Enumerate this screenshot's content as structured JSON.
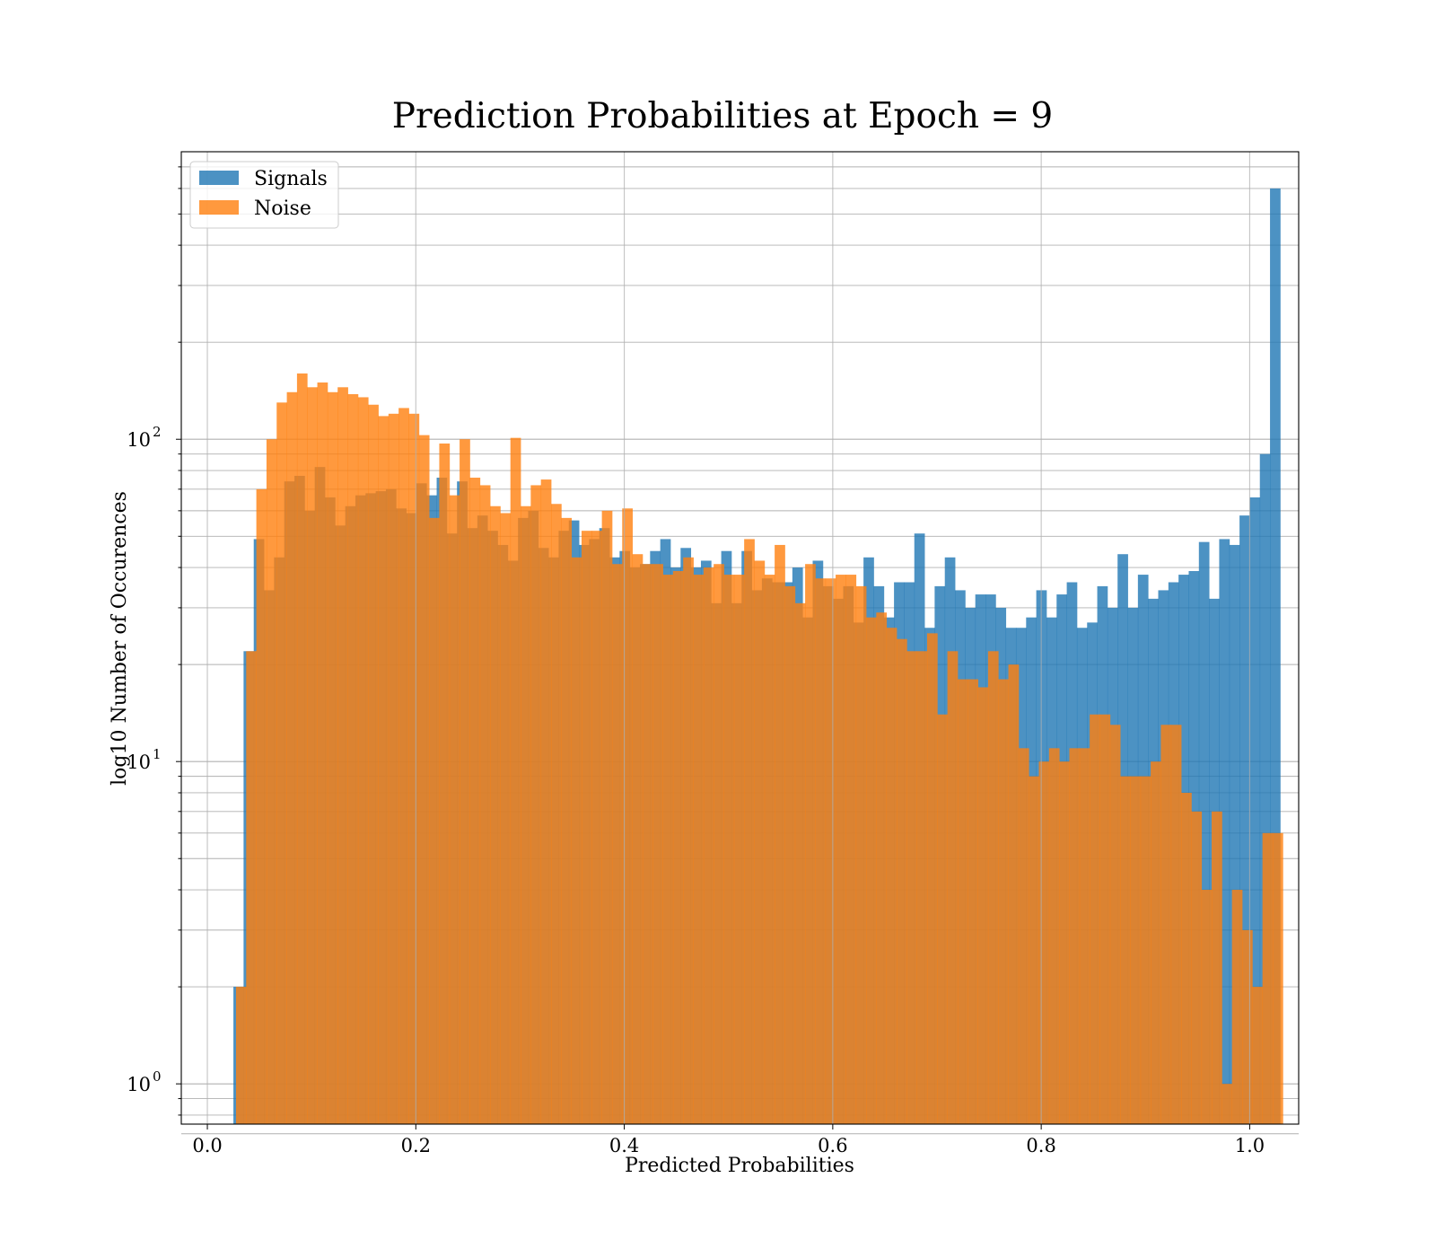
{
  "chart_data": {
    "type": "histogram",
    "title": "Prediction Probabilities at Epoch = 9",
    "xlabel": "Predicted Probabilities",
    "ylabel": "log10 Number of Occurences",
    "xlim": [
      -0.025,
      1.047
    ],
    "ylim": [
      0.75,
      780
    ],
    "yscale": "log",
    "grid": true,
    "x_ticks": [
      {
        "value": 0.0,
        "label": "0.0"
      },
      {
        "value": 0.2,
        "label": "0.2"
      },
      {
        "value": 0.4,
        "label": "0.4"
      },
      {
        "value": 0.6,
        "label": "0.6"
      },
      {
        "value": 0.8,
        "label": "0.8"
      },
      {
        "value": 1.0,
        "label": "1.0"
      }
    ],
    "y_ticks": [
      {
        "value": 1,
        "base": "10",
        "exp": "0"
      },
      {
        "value": 10,
        "base": "10",
        "exp": "1"
      },
      {
        "value": 100,
        "base": "10",
        "exp": "2"
      }
    ],
    "legend": {
      "position": "upper-left"
    },
    "series": [
      {
        "name": "Signals",
        "color": "#1f77b4",
        "bins": {
          "start": 0.025,
          "width": 0.00975
        },
        "values": [
          2,
          22,
          49,
          34,
          43,
          74,
          77,
          60,
          82,
          66,
          54,
          62,
          67,
          68,
          69,
          70,
          61,
          59,
          73,
          67,
          76,
          51,
          74,
          53,
          58,
          52,
          47,
          42,
          57,
          60,
          46,
          43,
          52,
          56,
          47,
          49,
          53,
          43,
          45,
          40,
          41,
          45,
          49,
          40,
          46,
          40,
          42,
          31,
          45,
          31,
          45,
          34,
          37,
          36,
          36,
          40,
          28,
          42,
          35,
          32,
          35,
          27,
          43,
          35,
          28,
          36,
          36,
          51,
          26,
          35,
          43,
          34,
          30,
          33,
          33,
          30,
          26,
          26,
          28,
          34,
          28,
          33,
          36,
          26,
          27,
          35,
          30,
          44,
          30,
          38,
          32,
          34,
          36,
          38,
          39,
          48,
          32,
          49,
          47,
          58,
          66,
          90,
          600
        ]
      },
      {
        "name": "Noise",
        "color": "#ff7f0e",
        "bins": {
          "start": 0.0275,
          "width": 0.00975
        },
        "values": [
          2,
          22,
          70,
          100,
          130,
          140,
          160,
          145,
          150,
          140,
          145,
          138,
          135,
          128,
          118,
          120,
          125,
          120,
          103,
          57,
          97,
          67,
          100,
          76,
          72,
          62,
          59,
          101,
          62,
          72,
          75,
          63,
          57,
          43,
          52,
          52,
          60,
          41,
          61,
          44,
          41,
          41,
          38,
          39,
          43,
          38,
          40,
          41,
          38,
          38,
          49,
          42,
          38,
          47,
          35,
          31,
          41,
          37,
          37,
          38,
          38,
          35,
          28,
          29,
          26,
          24,
          22,
          22,
          25,
          14,
          22,
          18,
          18,
          17,
          22,
          18,
          20,
          11,
          9,
          10,
          11,
          10,
          11,
          11,
          14,
          14,
          13,
          9,
          9,
          9,
          10,
          13,
          13,
          8,
          7,
          4,
          7,
          1,
          4,
          3,
          2,
          6,
          6
        ]
      }
    ]
  }
}
